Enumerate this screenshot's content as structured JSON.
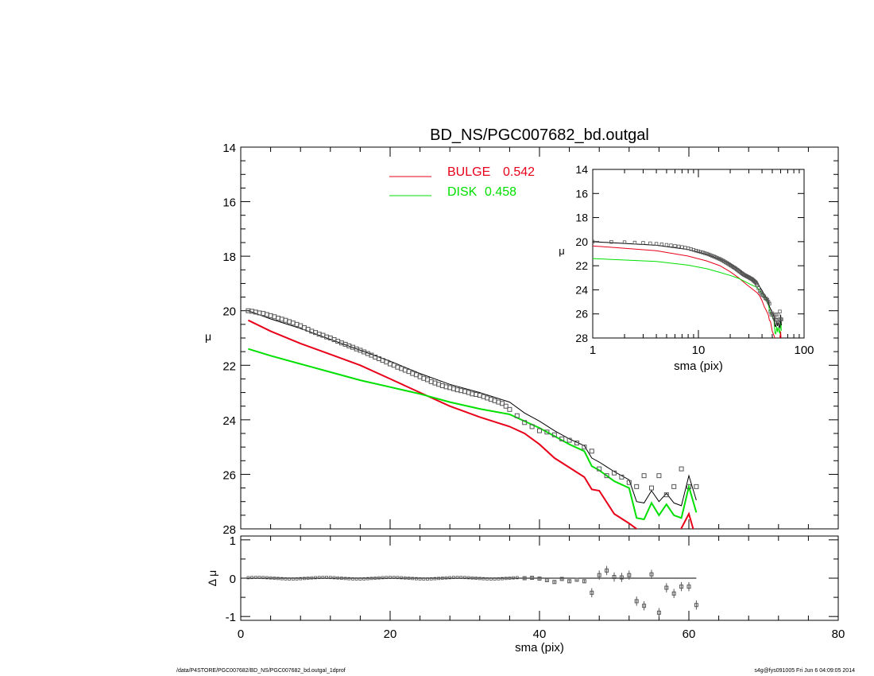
{
  "title": "BD_NS/PGC007682_bd.outgal",
  "footer": {
    "left": "/data/P4STORE/PGC007682/BD_NS/PGC007682_bd.outgal_1dprof",
    "right": "s4g@fys091005  Fri Jun  6 04:09:05 2014"
  },
  "colors": {
    "bulge": "#e8001a",
    "disk": "#00e000",
    "model": "#000000",
    "data": "#555555"
  },
  "chart_data": [
    {
      "name": "main-profile",
      "type": "line",
      "xlabel": "",
      "ylabel": "μ",
      "xlim": [
        0,
        80
      ],
      "ylim": [
        28,
        14
      ],
      "y_inverted": true,
      "yticks": [
        "14",
        "16",
        "18",
        "20",
        "22",
        "24",
        "26",
        "28"
      ],
      "legend": {
        "placement": "top-center",
        "entries": [
          {
            "label": "BULGE",
            "value": "0.542",
            "color": "#e8001a"
          },
          {
            "label": "DISK",
            "value": "0.458",
            "color": "#00e000"
          }
        ]
      },
      "bulge": {
        "x": [
          1,
          4,
          8,
          12,
          16,
          20,
          24,
          28,
          32,
          36,
          38,
          40,
          42,
          44,
          46,
          47,
          48,
          50,
          52,
          54,
          56,
          58,
          60,
          61
        ],
        "y": [
          20.35,
          20.75,
          21.2,
          21.6,
          22.0,
          22.5,
          23.0,
          23.5,
          23.9,
          24.25,
          24.5,
          24.9,
          25.4,
          25.75,
          26.1,
          26.55,
          26.6,
          27.45,
          27.8,
          28.2,
          28.4,
          28.5,
          27.45,
          28.4
        ]
      },
      "disk": {
        "x": [
          1,
          4,
          8,
          12,
          16,
          20,
          24,
          28,
          32,
          36,
          38,
          40,
          42,
          44,
          46,
          47,
          48,
          50,
          52,
          53,
          54,
          55,
          56,
          57,
          58,
          59,
          60,
          61
        ],
        "y": [
          21.4,
          21.65,
          21.95,
          22.25,
          22.55,
          22.8,
          23.05,
          23.35,
          23.6,
          23.8,
          24.05,
          24.3,
          24.6,
          24.9,
          25.15,
          25.7,
          25.85,
          26.25,
          26.5,
          27.6,
          27.65,
          27.05,
          27.5,
          27.1,
          27.5,
          27.6,
          26.45,
          27.4
        ]
      },
      "model": {
        "x": [
          1,
          4,
          8,
          12,
          16,
          20,
          24,
          28,
          32,
          36,
          38,
          40,
          42,
          44,
          46,
          47,
          48,
          50,
          52,
          53,
          54,
          55,
          56,
          57,
          58,
          59,
          60,
          61
        ],
        "y": [
          20.0,
          20.3,
          20.65,
          21.05,
          21.45,
          21.85,
          22.3,
          22.7,
          23.0,
          23.35,
          23.75,
          24.05,
          24.4,
          24.7,
          24.95,
          25.4,
          25.55,
          25.9,
          26.2,
          27.0,
          27.05,
          26.6,
          27.0,
          26.7,
          27.05,
          27.15,
          26.05,
          26.95
        ]
      },
      "data_points": {
        "x": [
          1,
          1.5,
          2,
          2.5,
          3,
          3.5,
          4,
          4.5,
          5,
          5.5,
          6,
          6.5,
          7,
          7.5,
          8,
          8.5,
          9,
          9.5,
          10,
          10.5,
          11,
          11.5,
          12,
          12.5,
          13,
          13.5,
          14,
          14.5,
          15,
          15.5,
          16,
          16.5,
          17,
          17.5,
          18,
          18.5,
          19,
          19.5,
          20,
          20.5,
          21,
          21.5,
          22,
          22.5,
          23,
          23.5,
          24,
          24.5,
          25,
          25.5,
          26,
          26.5,
          27,
          27.5,
          28,
          28.5,
          29,
          29.5,
          30,
          30.5,
          31,
          31.5,
          32,
          32.5,
          33,
          33.5,
          34,
          34.5,
          35,
          35.5,
          36,
          37,
          38,
          39,
          40,
          41,
          42,
          43,
          44,
          45,
          46,
          47,
          48,
          49,
          50,
          51,
          52,
          53,
          54,
          55,
          56,
          57,
          58,
          59,
          60,
          61
        ],
        "y": [
          20.0,
          20.02,
          20.05,
          20.08,
          20.1,
          20.14,
          20.18,
          20.22,
          20.27,
          20.31,
          20.35,
          20.4,
          20.45,
          20.5,
          20.55,
          20.62,
          20.68,
          20.75,
          20.8,
          20.86,
          20.9,
          20.96,
          21.0,
          21.06,
          21.12,
          21.18,
          21.23,
          21.29,
          21.34,
          21.4,
          21.45,
          21.51,
          21.57,
          21.63,
          21.7,
          21.76,
          21.82,
          21.88,
          21.95,
          22.0,
          22.07,
          22.12,
          22.18,
          22.23,
          22.3,
          22.35,
          22.42,
          22.48,
          22.53,
          22.6,
          22.65,
          22.7,
          22.75,
          22.79,
          22.82,
          22.86,
          22.9,
          22.93,
          22.96,
          23.0,
          23.05,
          23.07,
          23.1,
          23.15,
          23.2,
          23.25,
          23.3,
          23.35,
          23.4,
          23.5,
          23.62,
          23.85,
          24.1,
          24.25,
          24.4,
          24.45,
          24.55,
          24.7,
          24.75,
          24.85,
          25.0,
          25.15,
          25.8,
          26.05,
          25.95,
          26.1,
          26.3,
          26.45,
          26.05,
          26.5,
          26.05,
          26.75,
          26.45,
          25.8,
          26.45,
          26.45
        ]
      }
    },
    {
      "name": "residuals",
      "type": "scatter",
      "xlabel": "sma (pix)",
      "ylabel": "Δ μ",
      "xlim": [
        0,
        80
      ],
      "ylim": [
        -1.1,
        1.1
      ],
      "xticks": [
        "0",
        "20",
        "40",
        "60",
        "80"
      ],
      "yticks": [
        "1",
        "0",
        "-1"
      ],
      "zero_line_xmax": 61,
      "points": {
        "x": [
          38,
          39,
          40,
          41,
          42,
          43,
          44,
          45,
          46,
          47,
          48,
          49,
          50,
          51,
          52,
          53,
          54,
          55,
          56,
          57,
          58,
          59,
          60,
          61
        ],
        "y": [
          0.0,
          0.01,
          -0.01,
          -0.05,
          -0.1,
          -0.02,
          -0.08,
          -0.04,
          -0.08,
          -0.38,
          0.08,
          0.2,
          0.03,
          0.02,
          0.08,
          -0.6,
          -0.72,
          0.1,
          -0.9,
          -0.25,
          -0.4,
          -0.22,
          -0.22,
          -0.7
        ]
      },
      "flat_residual_xmax": 37
    },
    {
      "name": "inset-loglog",
      "type": "line",
      "xlabel": "sma (pix)",
      "ylabel": "μ",
      "xscale": "log",
      "xlim": [
        1,
        100
      ],
      "ylim": [
        28,
        14
      ],
      "y_inverted": true,
      "xticks": [
        "1",
        "10",
        "100"
      ],
      "yticks": [
        "14",
        "16",
        "18",
        "20",
        "22",
        "24",
        "26",
        "28"
      ]
    }
  ]
}
